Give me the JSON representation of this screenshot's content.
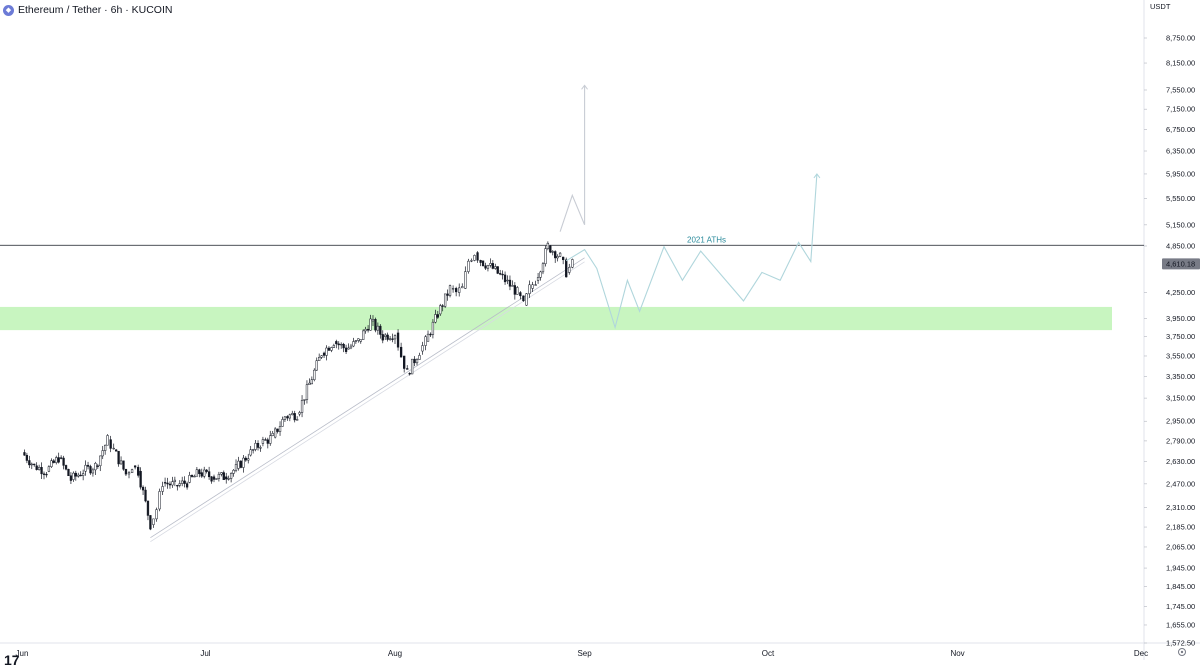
{
  "header": {
    "symbol_icon": "ethereum-logo-icon",
    "title": "Ethereum / Tether · 6h · KUCOIN"
  },
  "currency": "USDT",
  "logo": "TradingView",
  "settings_icon": "gear-icon",
  "chart_data": {
    "type": "candlestick",
    "title": "Ethereum / Tether · 6h · KUCOIN",
    "price_axis": {
      "ticks": [
        8750,
        8150,
        7550,
        7150,
        6750,
        6350,
        5950,
        5550,
        5150,
        4850,
        4250,
        3950,
        3750,
        3550,
        3350,
        3150,
        2950,
        2790,
        2630,
        2470,
        2310,
        2185,
        2065,
        1945,
        1845,
        1745,
        1655,
        1572.5
      ],
      "tick_labels": [
        "8,750.00",
        "8,150.00",
        "7,550.00",
        "7,150.00",
        "6,750.00",
        "6,350.00",
        "5,950.00",
        "5,550.00",
        "5,150.00",
        "4,850.00",
        "4,250.00",
        "3,950.00",
        "3,750.00",
        "3,550.00",
        "3,350.00",
        "3,150.00",
        "2,950.00",
        "2,790.00",
        "2,630.00",
        "2,470.00",
        "2,310.00",
        "2,185.00",
        "2,065.00",
        "1,945.00",
        "1,845.00",
        "1,745.00",
        "1,655.00",
        "1,572.50"
      ],
      "scale": "log",
      "current_price": 4610.18,
      "current_price_label": "4,610.18"
    },
    "time_axis": {
      "labels": [
        "Jun",
        "Jul",
        "Aug",
        "Sep",
        "Oct",
        "Nov",
        "Dec"
      ]
    },
    "close_series": [
      {
        "date": "2021-06-01",
        "close": 2700
      },
      {
        "date": "2021-06-03",
        "close": 2600
      },
      {
        "date": "2021-06-05",
        "close": 2560
      },
      {
        "date": "2021-06-07",
        "close": 2660
      },
      {
        "date": "2021-06-09",
        "close": 2500
      },
      {
        "date": "2021-06-11",
        "close": 2560
      },
      {
        "date": "2021-06-13",
        "close": 2600
      },
      {
        "date": "2021-06-15",
        "close": 2800
      },
      {
        "date": "2021-06-16",
        "close": 2720
      },
      {
        "date": "2021-06-18",
        "close": 2540
      },
      {
        "date": "2021-06-19",
        "close": 2600
      },
      {
        "date": "2021-06-20",
        "close": 2560
      },
      {
        "date": "2021-06-22",
        "close": 2200
      },
      {
        "date": "2021-06-23",
        "close": 2300
      },
      {
        "date": "2021-06-24",
        "close": 2480
      },
      {
        "date": "2021-06-26",
        "close": 2460
      },
      {
        "date": "2021-06-28",
        "close": 2480
      },
      {
        "date": "2021-06-30",
        "close": 2550
      },
      {
        "date": "2021-07-02",
        "close": 2520
      },
      {
        "date": "2021-07-04",
        "close": 2520
      },
      {
        "date": "2021-07-06",
        "close": 2580
      },
      {
        "date": "2021-07-08",
        "close": 2680
      },
      {
        "date": "2021-07-10",
        "close": 2770
      },
      {
        "date": "2021-07-12",
        "close": 2820
      },
      {
        "date": "2021-07-14",
        "close": 2990
      },
      {
        "date": "2021-07-16",
        "close": 3010
      },
      {
        "date": "2021-07-18",
        "close": 3280
      },
      {
        "date": "2021-07-20",
        "close": 3580
      },
      {
        "date": "2021-07-22",
        "close": 3700
      },
      {
        "date": "2021-07-24",
        "close": 3620
      },
      {
        "date": "2021-07-26",
        "close": 3700
      },
      {
        "date": "2021-07-28",
        "close": 3920
      },
      {
        "date": "2021-07-30",
        "close": 3750
      },
      {
        "date": "2021-08-01",
        "close": 3790
      },
      {
        "date": "2021-08-02",
        "close": 3550
      },
      {
        "date": "2021-08-03",
        "close": 3380
      },
      {
        "date": "2021-08-05",
        "close": 3600
      },
      {
        "date": "2021-08-06",
        "close": 3700
      },
      {
        "date": "2021-08-08",
        "close": 4000
      },
      {
        "date": "2021-08-10",
        "close": 4300
      },
      {
        "date": "2021-08-11",
        "close": 4250
      },
      {
        "date": "2021-08-12",
        "close": 4300
      },
      {
        "date": "2021-08-13",
        "close": 4650
      },
      {
        "date": "2021-08-14",
        "close": 4760
      },
      {
        "date": "2021-08-15",
        "close": 4650
      },
      {
        "date": "2021-08-17",
        "close": 4550
      },
      {
        "date": "2021-08-19",
        "close": 4400
      },
      {
        "date": "2021-08-21",
        "close": 4250
      },
      {
        "date": "2021-08-22",
        "close": 4100
      },
      {
        "date": "2021-08-23",
        "close": 4300
      },
      {
        "date": "2021-08-24",
        "close": 4400
      },
      {
        "date": "2021-08-26",
        "close": 4850
      },
      {
        "date": "2021-08-28",
        "close": 4700
      },
      {
        "date": "2021-08-29",
        "close": 4500
      },
      {
        "date": "2021-08-30",
        "close": 4610.18
      }
    ],
    "annotations": {
      "ath_line": {
        "price": 4860,
        "label": "2021 ATHs"
      },
      "support_zone": {
        "from": 3820,
        "to": 4080,
        "color": "#c8f5c0"
      },
      "trendline": {
        "from": {
          "date": "2021-06-22",
          "price": 2120
        },
        "to": {
          "date": "2021-09-01",
          "price": 4690
        }
      },
      "projection_1": [
        {
          "date": "2021-08-29",
          "price": 4650
        },
        {
          "date": "2021-09-01",
          "price": 4800
        },
        {
          "date": "2021-09-03",
          "price": 4550
        },
        {
          "date": "2021-09-06",
          "price": 3850
        },
        {
          "date": "2021-09-08",
          "price": 4400
        },
        {
          "date": "2021-09-10",
          "price": 4030
        },
        {
          "date": "2021-09-14",
          "price": 4840
        },
        {
          "date": "2021-09-17",
          "price": 4400
        },
        {
          "date": "2021-09-20",
          "price": 4780
        },
        {
          "date": "2021-09-27",
          "price": 4150
        },
        {
          "date": "2021-09-30",
          "price": 4500
        },
        {
          "date": "2021-10-03",
          "price": 4400
        },
        {
          "date": "2021-10-06",
          "price": 4900
        },
        {
          "date": "2021-10-08",
          "price": 4640
        },
        {
          "date": "2021-10-09",
          "price": 5950
        }
      ],
      "projection_2": [
        {
          "date": "2021-08-28",
          "price": 5050
        },
        {
          "date": "2021-08-30",
          "price": 5600
        },
        {
          "date": "2021-09-01",
          "price": 5150
        },
        {
          "date": "2021-09-01",
          "price": 7650
        }
      ],
      "line_color": "#b0d6dc"
    }
  }
}
